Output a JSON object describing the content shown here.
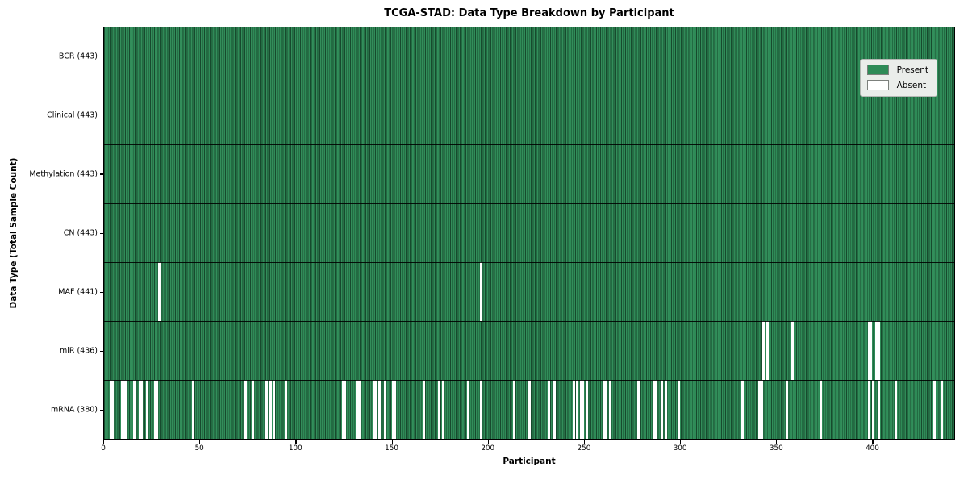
{
  "figure": {
    "title": "TCGA-STAD: Data Type Breakdown by Participant",
    "xlabel": "Participant",
    "ylabel": "Data Type (Total Sample Count)"
  },
  "legend": {
    "items": [
      {
        "label": "Present",
        "color": "#2e8b57"
      },
      {
        "label": "Absent",
        "color": "#ffffff"
      }
    ]
  },
  "colors": {
    "present": "#2e8b57",
    "absent": "#ffffff",
    "row_divider": "#000000",
    "plot_border": "#000000",
    "legend_bg": "#eaedea"
  },
  "chart_data": {
    "type": "heatmap",
    "title": "TCGA-STAD: Data Type Breakdown by Participant",
    "xlabel": "Participant",
    "ylabel": "Data Type (Total Sample Count)",
    "xlim": [
      0,
      443
    ],
    "x_ticks": [
      0,
      50,
      100,
      150,
      200,
      250,
      300,
      350,
      400
    ],
    "n_participants": 443,
    "grid": false,
    "legend": [
      "Present",
      "Absent"
    ],
    "legend_position": "upper right",
    "rows": [
      {
        "label": "BCR (443)",
        "data_type": "BCR",
        "present_count": 443,
        "absent_participants": []
      },
      {
        "label": "Clinical (443)",
        "data_type": "Clinical",
        "present_count": 443,
        "absent_participants": []
      },
      {
        "label": "Methylation (443)",
        "data_type": "Methylation",
        "present_count": 443,
        "absent_participants": []
      },
      {
        "label": "CN (443)",
        "data_type": "CN",
        "present_count": 443,
        "absent_participants": []
      },
      {
        "label": "MAF (441)",
        "data_type": "MAF",
        "present_count": 441,
        "absent_participants": [
          28,
          196
        ]
      },
      {
        "label": "miR (436)",
        "data_type": "miR",
        "present_count": 436,
        "absent_participants": [
          343,
          345,
          358,
          398,
          399,
          402,
          403
        ]
      },
      {
        "label": "mRNA (380)",
        "data_type": "mRNA",
        "present_count": 380,
        "absent_participants": [
          3,
          4,
          9,
          10,
          11,
          15,
          18,
          19,
          22,
          26,
          27,
          46,
          73,
          77,
          84,
          86,
          88,
          94,
          124,
          125,
          131,
          132,
          133,
          140,
          141,
          143,
          146,
          150,
          151,
          166,
          174,
          176,
          189,
          196,
          213,
          221,
          231,
          234,
          244,
          246,
          248,
          249,
          251,
          260,
          261,
          263,
          278,
          286,
          287,
          290,
          292,
          299,
          332,
          341,
          342,
          355,
          373,
          398,
          400,
          403,
          412,
          432,
          436
        ]
      }
    ]
  }
}
